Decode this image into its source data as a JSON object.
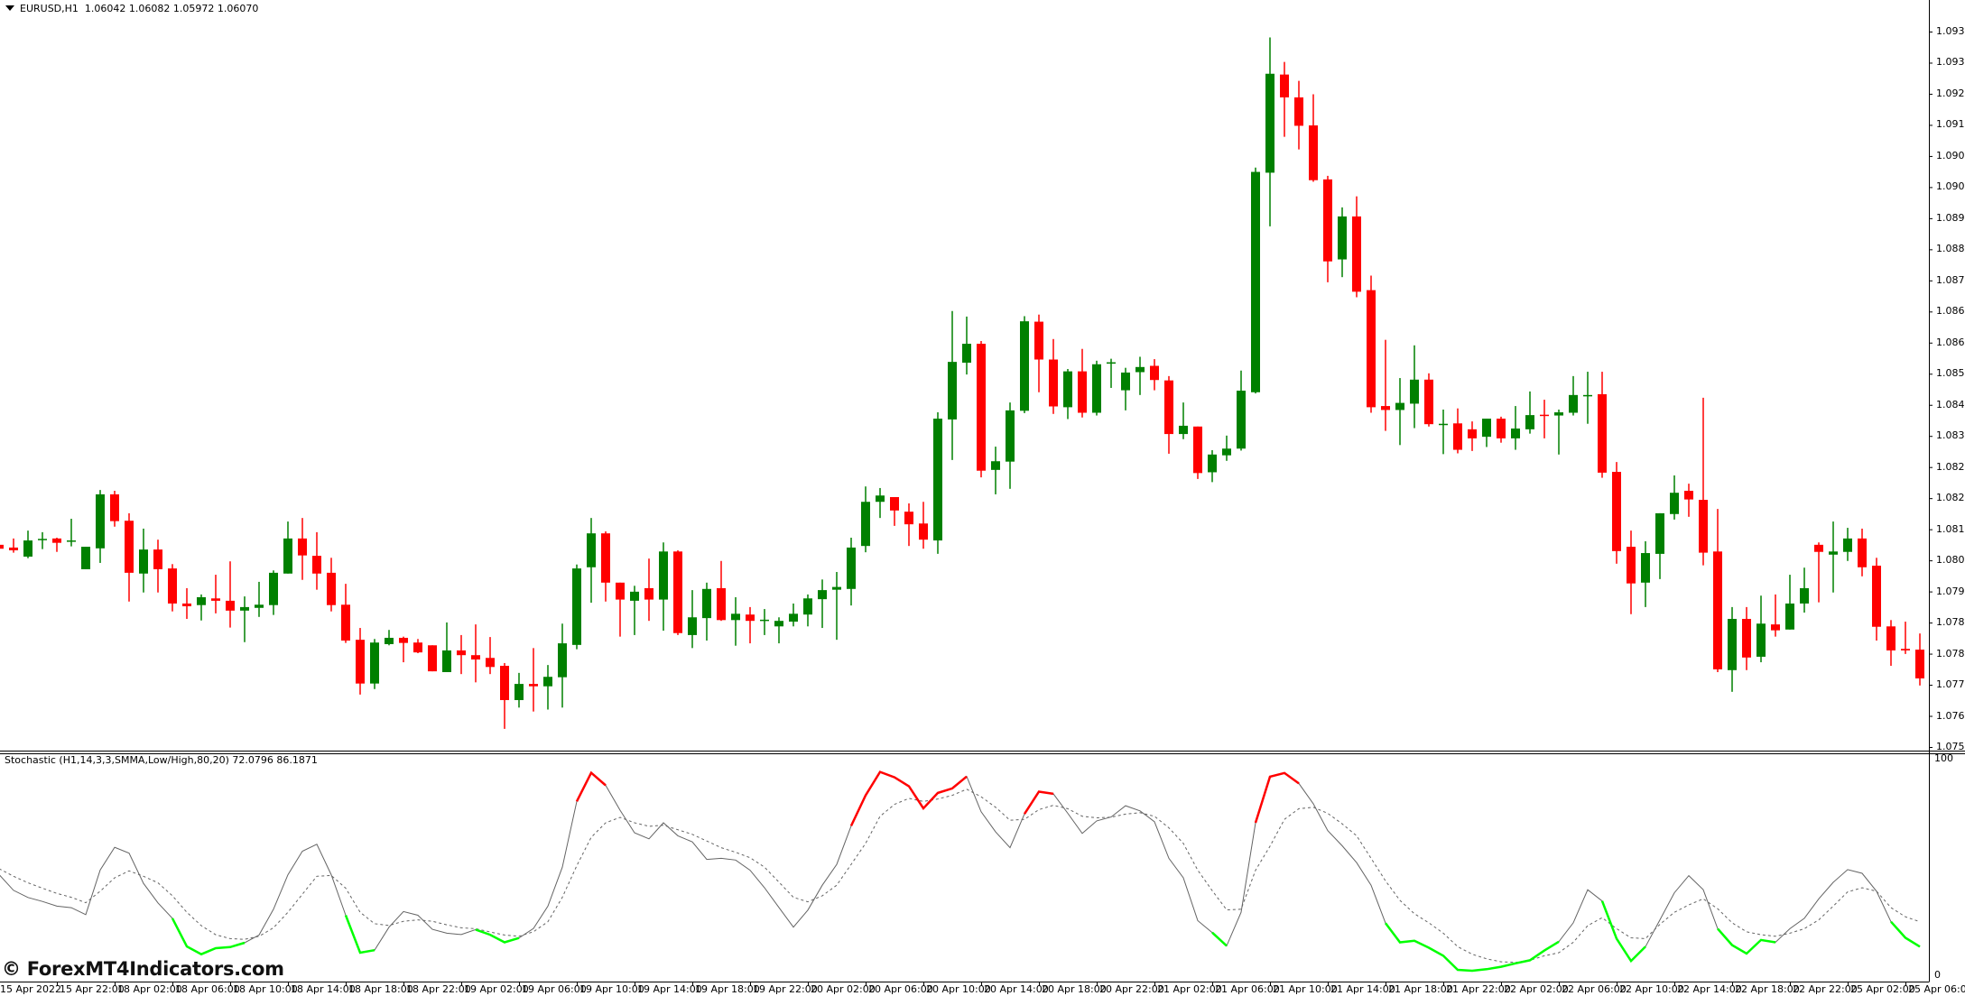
{
  "header": {
    "symbol": "EURUSD,H1",
    "ohlc": "1.06042 1.06082 1.05972 1.06070"
  },
  "indicator": {
    "label": "Stochastic (H1,14,3,3,SMMA,Low/High,80,20) 72.0796 86.1871",
    "axis_top": "100",
    "axis_bottom": "0"
  },
  "watermark": "© ForexMT4Indicators.com",
  "colors": {
    "bull": "#008000",
    "bear": "#ff0000",
    "main_line": "#646464",
    "signal_line": "#646464",
    "overbought": "#ff0000",
    "oversold": "#00ff00",
    "axis": "#000000"
  },
  "price_axis": {
    "top": 1.0938,
    "bottom": 1.07565,
    "labels": [
      "1.09380",
      "1.09305",
      "1.09230",
      "1.09155",
      "1.09080",
      "1.09005",
      "1.08925",
      "1.08845",
      "1.08765",
      "1.08685",
      "1.08605",
      "1.08525",
      "1.08445",
      "1.08365",
      "1.08285",
      "1.08205",
      "1.08125",
      "1.08045",
      "1.07965",
      "1.07885",
      "1.07805",
      "1.07725",
      "1.07645",
      "1.07565"
    ]
  },
  "time_axis": {
    "labels": [
      "15 Apr 2022",
      "15 Apr 22:00",
      "18 Apr 02:00",
      "18 Apr 06:00",
      "18 Apr 10:00",
      "18 Apr 14:00",
      "18 Apr 18:00",
      "18 Apr 22:00",
      "19 Apr 02:00",
      "19 Apr 06:00",
      "19 Apr 10:00",
      "19 Apr 14:00",
      "19 Apr 18:00",
      "19 Apr 22:00",
      "20 Apr 02:00",
      "20 Apr 06:00",
      "20 Apr 10:00",
      "20 Apr 14:00",
      "20 Apr 18:00",
      "20 Apr 22:00",
      "21 Apr 02:00",
      "21 Apr 06:00",
      "21 Apr 10:00",
      "21 Apr 14:00",
      "21 Apr 18:00",
      "21 Apr 22:00",
      "22 Apr 02:00",
      "22 Apr 06:00",
      "22 Apr 10:00",
      "22 Apr 14:00",
      "22 Apr 18:00",
      "22 Apr 22:00",
      "25 Apr 02:00",
      "25 Apr 06:00"
    ],
    "bars_per_label": 4
  },
  "candles_ohlc": [
    [
      1.08078,
      1.08078,
      1.08068,
      1.08068
    ],
    [
      1.08071,
      1.08094,
      1.08058,
      1.08064
    ],
    [
      1.08048,
      1.08114,
      1.08044,
      1.08089
    ],
    [
      1.08092,
      1.0811,
      1.08067,
      1.08093
    ],
    [
      1.08094,
      1.08096,
      1.0806,
      1.08083
    ],
    [
      1.08088,
      1.08144,
      1.08074,
      1.08089
    ],
    [
      1.08016,
      1.08073,
      1.08016,
      1.08073
    ],
    [
      1.08069,
      1.08217,
      1.08032,
      1.08206
    ],
    [
      1.08206,
      1.08215,
      1.08124,
      1.08138
    ],
    [
      1.08139,
      1.08158,
      1.07934,
      1.08007
    ],
    [
      1.08005,
      1.08119,
      1.07957,
      1.08066
    ],
    [
      1.08066,
      1.08091,
      1.07957,
      1.08016
    ],
    [
      1.08018,
      1.08029,
      1.07909,
      1.07929
    ],
    [
      1.07929,
      1.07968,
      1.0789,
      1.07922
    ],
    [
      1.07925,
      1.07952,
      1.07886,
      1.07945
    ],
    [
      1.07942,
      1.08002,
      1.07904,
      1.07936
    ],
    [
      1.07936,
      1.08036,
      1.07868,
      1.07911
    ],
    [
      1.07911,
      1.07947,
      1.07831,
      1.0792
    ],
    [
      1.07918,
      1.07984,
      1.07895,
      1.07926
    ],
    [
      1.07925,
      1.08013,
      1.079,
      1.08007
    ],
    [
      1.08005,
      1.08137,
      1.08005,
      1.08094
    ],
    [
      1.08094,
      1.08146,
      1.07989,
      1.08051
    ],
    [
      1.0805,
      1.0811,
      1.07964,
      1.08005
    ],
    [
      1.08007,
      1.08045,
      1.07909,
      1.07925
    ],
    [
      1.07926,
      1.07979,
      1.07829,
      1.07835
    ],
    [
      1.07837,
      1.07867,
      1.07698,
      1.07726
    ],
    [
      1.07726,
      1.07839,
      1.07712,
      1.0783
    ],
    [
      1.07826,
      1.07862,
      1.07823,
      1.07842
    ],
    [
      1.07842,
      1.07845,
      1.0778,
      1.07829
    ],
    [
      1.0783,
      1.07839,
      1.07803,
      1.07805
    ],
    [
      1.07823,
      1.07823,
      1.07757,
      1.07757
    ],
    [
      1.07755,
      1.07881,
      1.07755,
      1.0781
    ],
    [
      1.0781,
      1.07849,
      1.0775,
      1.07798
    ],
    [
      1.07798,
      1.07876,
      1.07729,
      1.07787
    ],
    [
      1.07791,
      1.07844,
      1.0775,
      1.07768
    ],
    [
      1.07771,
      1.07778,
      1.07611,
      1.07684
    ],
    [
      1.07684,
      1.07753,
      1.07665,
      1.07725
    ],
    [
      1.07725,
      1.07816,
      1.07655,
      1.07719
    ],
    [
      1.07719,
      1.07773,
      1.0766,
      1.07743
    ],
    [
      1.07742,
      1.07878,
      1.07665,
      1.07828
    ],
    [
      1.07824,
      1.08028,
      1.07813,
      1.08018
    ],
    [
      1.08021,
      1.08146,
      1.07931,
      1.08107
    ],
    [
      1.08107,
      1.08112,
      1.07934,
      1.07982
    ],
    [
      1.07982,
      1.07982,
      1.07845,
      1.07939
    ],
    [
      1.07936,
      1.07974,
      1.07849,
      1.07959
    ],
    [
      1.07968,
      1.08043,
      1.07885,
      1.07939
    ],
    [
      1.07939,
      1.08084,
      1.0786,
      1.08061
    ],
    [
      1.08061,
      1.08064,
      1.07849,
      1.07854
    ],
    [
      1.07849,
      1.07963,
      1.07816,
      1.07894
    ],
    [
      1.07892,
      1.07982,
      1.07835,
      1.07966
    ],
    [
      1.07968,
      1.08037,
      1.07885,
      1.07887
    ],
    [
      1.07887,
      1.07945,
      1.07822,
      1.07903
    ],
    [
      1.07901,
      1.0792,
      1.07828,
      1.07885
    ],
    [
      1.07886,
      1.07915,
      1.07849,
      1.07888
    ],
    [
      1.07871,
      1.07894,
      1.07828,
      1.07885
    ],
    [
      1.07883,
      1.07929,
      1.07871,
      1.07903
    ],
    [
      1.07901,
      1.07952,
      1.07871,
      1.07942
    ],
    [
      1.0794,
      1.0799,
      1.07867,
      1.07963
    ],
    [
      1.07964,
      1.08009,
      1.07837,
      1.07971
    ],
    [
      1.07966,
      1.08096,
      1.07924,
      1.08071
    ],
    [
      1.08075,
      1.08226,
      1.08059,
      1.08187
    ],
    [
      1.08187,
      1.08222,
      1.08146,
      1.08203
    ],
    [
      1.08199,
      1.08199,
      1.08126,
      1.08165
    ],
    [
      1.08162,
      1.08183,
      1.08075,
      1.0813
    ],
    [
      1.08132,
      1.08187,
      1.08068,
      1.08091
    ],
    [
      1.08089,
      1.08414,
      1.08055,
      1.08398
    ],
    [
      1.08396,
      1.08671,
      1.08293,
      1.08542
    ],
    [
      1.0854,
      1.08657,
      1.0851,
      1.08588
    ],
    [
      1.08588,
      1.08595,
      1.08249,
      1.08266
    ],
    [
      1.08268,
      1.08327,
      1.08206,
      1.0829
    ],
    [
      1.08289,
      1.08439,
      1.0822,
      1.08419
    ],
    [
      1.08418,
      1.08658,
      1.08412,
      1.08645
    ],
    [
      1.08644,
      1.08662,
      1.08465,
      1.08548
    ],
    [
      1.08548,
      1.086,
      1.0841,
      1.08429
    ],
    [
      1.08427,
      1.08524,
      1.08397,
      1.08518
    ],
    [
      1.08518,
      1.08575,
      1.08401,
      1.08413
    ],
    [
      1.08413,
      1.08545,
      1.08406,
      1.08536
    ],
    [
      1.0854,
      1.0855,
      1.08476,
      1.08541
    ],
    [
      1.0847,
      1.08527,
      1.08419,
      1.08515
    ],
    [
      1.08516,
      1.08555,
      1.08458,
      1.08529
    ],
    [
      1.08532,
      1.08549,
      1.0847,
      1.08496
    ],
    [
      1.08495,
      1.08506,
      1.08309,
      1.08359
    ],
    [
      1.08359,
      1.08439,
      1.08346,
      1.0838
    ],
    [
      1.08378,
      1.08378,
      1.08245,
      1.0826
    ],
    [
      1.08262,
      1.08318,
      1.08237,
      1.08307
    ],
    [
      1.08305,
      1.08355,
      1.08291,
      1.08322
    ],
    [
      1.08322,
      1.0852,
      1.08317,
      1.08469
    ],
    [
      1.08465,
      1.09035,
      1.08462,
      1.09024
    ],
    [
      1.09022,
      1.09365,
      1.08886,
      1.09273
    ],
    [
      1.09271,
      1.09303,
      1.09113,
      1.09213
    ],
    [
      1.09213,
      1.09255,
      1.09081,
      1.09141
    ],
    [
      1.09142,
      1.09221,
      1.08999,
      1.09003
    ],
    [
      1.09005,
      1.09014,
      1.08744,
      1.08797
    ],
    [
      1.08802,
      1.08934,
      1.08757,
      1.08911
    ],
    [
      1.08911,
      1.08962,
      1.08706,
      1.0872
    ],
    [
      1.08724,
      1.08761,
      1.08413,
      1.08427
    ],
    [
      1.0843,
      1.08598,
      1.08367,
      1.0842
    ],
    [
      1.0842,
      1.08501,
      1.08331,
      1.08438
    ],
    [
      1.08436,
      1.08584,
      1.08374,
      1.08497
    ],
    [
      1.08497,
      1.08513,
      1.08378,
      1.08384
    ],
    [
      1.08384,
      1.08421,
      1.08308,
      1.08385
    ],
    [
      1.08386,
      1.08424,
      1.0831,
      1.08319
    ],
    [
      1.08371,
      1.08391,
      1.08316,
      1.08348
    ],
    [
      1.08352,
      1.08398,
      1.08326,
      1.08398
    ],
    [
      1.08398,
      1.08403,
      1.08337,
      1.08348
    ],
    [
      1.08348,
      1.0843,
      1.08319,
      1.08373
    ],
    [
      1.08371,
      1.08467,
      1.0836,
      1.08407
    ],
    [
      1.08408,
      1.08446,
      1.08348,
      1.08406
    ],
    [
      1.08406,
      1.08421,
      1.08307,
      1.08414
    ],
    [
      1.08413,
      1.08506,
      1.08406,
      1.08458
    ],
    [
      1.08456,
      1.08517,
      1.08385,
      1.08458
    ],
    [
      1.0846,
      1.08517,
      1.08248,
      1.08261
    ],
    [
      1.08263,
      1.08288,
      1.0803,
      1.08062
    ],
    [
      1.08073,
      1.08114,
      1.07902,
      1.0798
    ],
    [
      1.07982,
      1.08087,
      1.0792,
      1.08057
    ],
    [
      1.08055,
      1.08158,
      1.07991,
      1.08158
    ],
    [
      1.08156,
      1.08254,
      1.08142,
      1.0821
    ],
    [
      1.08215,
      1.08233,
      1.08149,
      1.08193
    ],
    [
      1.08192,
      1.08451,
      1.08026,
      1.08058
    ],
    [
      1.08061,
      1.08169,
      1.07755,
      1.07762
    ],
    [
      1.0776,
      1.0792,
      1.07705,
      1.0789
    ],
    [
      1.0789,
      1.0792,
      1.0776,
      1.07792
    ],
    [
      1.07794,
      1.07949,
      1.0778,
      1.07878
    ],
    [
      1.07876,
      1.07952,
      1.07845,
      1.07861
    ],
    [
      1.07863,
      1.08002,
      1.07863,
      1.07929
    ],
    [
      1.07929,
      1.0802,
      1.07906,
      1.07968
    ],
    [
      1.08078,
      1.08084,
      1.07932,
      1.0806
    ],
    [
      1.08053,
      1.08137,
      1.07957,
      1.08061
    ],
    [
      1.0806,
      1.08121,
      1.08037,
      1.08094
    ],
    [
      1.08094,
      1.08119,
      1.07998,
      1.08021
    ],
    [
      1.08025,
      1.08045,
      1.07835,
      1.0787
    ],
    [
      1.07871,
      1.07887,
      1.07771,
      1.0781
    ],
    [
      1.07814,
      1.07883,
      1.07801,
      1.0781
    ],
    [
      1.07812,
      1.07853,
      1.07721,
      1.07739
    ]
  ],
  "stochastic": {
    "main": [
      46.5,
      39.2,
      35.9,
      34.1,
      31.9,
      31.2,
      28.0,
      48.6,
      59.1,
      56.4,
      42.4,
      33.4,
      26.3,
      13.3,
      9.7,
      12.5,
      13.0,
      15.0,
      18.6,
      30.5,
      46.4,
      57.3,
      60.5,
      46.4,
      27.7,
      10.4,
      11.6,
      22.2,
      29.4,
      27.7,
      21.2,
      19.4,
      18.8,
      21.1,
      18.7,
      15.2,
      17.2,
      21.6,
      31.9,
      49.9,
      80.3,
      93.5,
      87.7,
      76.2,
      65.8,
      63.0,
      70.4,
      64.4,
      61.6,
      53.5,
      54.0,
      53.2,
      48.5,
      40.4,
      31.3,
      22.2,
      30.1,
      41.6,
      51.2,
      69.0,
      83.1,
      93.9,
      91.4,
      87.3,
      77.1,
      84.2,
      86.3,
      91.8,
      75.5,
      66.2,
      58.9,
      74.5,
      84.8,
      83.8,
      74.8,
      65.5,
      71.3,
      73.1,
      78.3,
      75.9,
      70.9,
      54.0,
      45.0,
      25.2,
      19.7,
      13.6,
      29.1,
      70.4,
      91.7,
      93.4,
      88.6,
      79.2,
      66.8,
      59.8,
      52.0,
      41.6,
      24.1,
      15.2,
      15.9,
      12.7,
      9.0,
      2.5,
      2.1,
      2.8,
      3.9,
      5.5,
      6.9,
      11.4,
      15.5,
      24.2,
      39.5,
      34.3,
      16.9,
      6.6,
      13.2,
      25.6,
      38.1,
      46.0,
      39.5,
      21.5,
      13.9,
      10.0,
      16.3,
      15.2,
      21.5,
      26.3,
      35.3,
      42.9,
      48.8,
      47.1,
      38.8,
      24.7,
      17.3,
      13.2
    ],
    "signal": [
      49.2,
      45.7,
      42.7,
      40.2,
      37.8,
      36.0,
      33.5,
      38.8,
      45.0,
      48.2,
      45.7,
      42.7,
      36.7,
      29.1,
      22.9,
      18.7,
      16.9,
      16.6,
      18.0,
      21.9,
      29.1,
      37.4,
      45.7,
      46.1,
      40.2,
      29.1,
      23.8,
      23.0,
      24.9,
      25.6,
      24.9,
      23.3,
      21.9,
      21.5,
      20.0,
      18.6,
      18.0,
      20.1,
      24.7,
      36.0,
      50.6,
      63.7,
      70.4,
      72.9,
      70.4,
      68.8,
      69.3,
      67.2,
      65.1,
      62.0,
      58.9,
      56.8,
      54.3,
      49.9,
      43.0,
      36.0,
      33.9,
      36.7,
      41.6,
      51.2,
      60.9,
      73.4,
      78.9,
      81.7,
      80.3,
      81.4,
      83.1,
      85.9,
      82.4,
      77.6,
      71.6,
      72.0,
      76.5,
      78.5,
      76.9,
      73.4,
      72.7,
      73.0,
      74.4,
      75.1,
      73.4,
      68.1,
      60.9,
      48.5,
      39.1,
      30.2,
      30.5,
      48.5,
      59.6,
      72.0,
      76.9,
      77.6,
      74.8,
      69.9,
      64.4,
      54.0,
      43.6,
      34.6,
      28.4,
      24.2,
      19.4,
      13.2,
      9.7,
      7.6,
      6.2,
      5.9,
      6.9,
      9.0,
      10.4,
      15.2,
      22.9,
      26.6,
      21.5,
      17.3,
      16.9,
      23.5,
      29.1,
      32.5,
      35.3,
      30.7,
      24.2,
      20.1,
      18.7,
      18.0,
      19.4,
      21.5,
      25.6,
      31.9,
      38.5,
      40.4,
      38.8,
      31.2,
      27.0,
      24.7
    ],
    "overbought_ranges": [
      [
        40,
        42
      ],
      [
        59,
        67
      ],
      [
        71,
        73
      ],
      [
        87,
        90
      ]
    ],
    "oversold_ranges": [
      [
        12,
        17
      ],
      [
        24,
        26
      ],
      [
        33,
        36
      ],
      [
        84,
        85
      ],
      [
        96,
        108
      ],
      [
        111,
        114
      ],
      [
        119,
        123
      ],
      [
        131,
        133
      ]
    ]
  }
}
